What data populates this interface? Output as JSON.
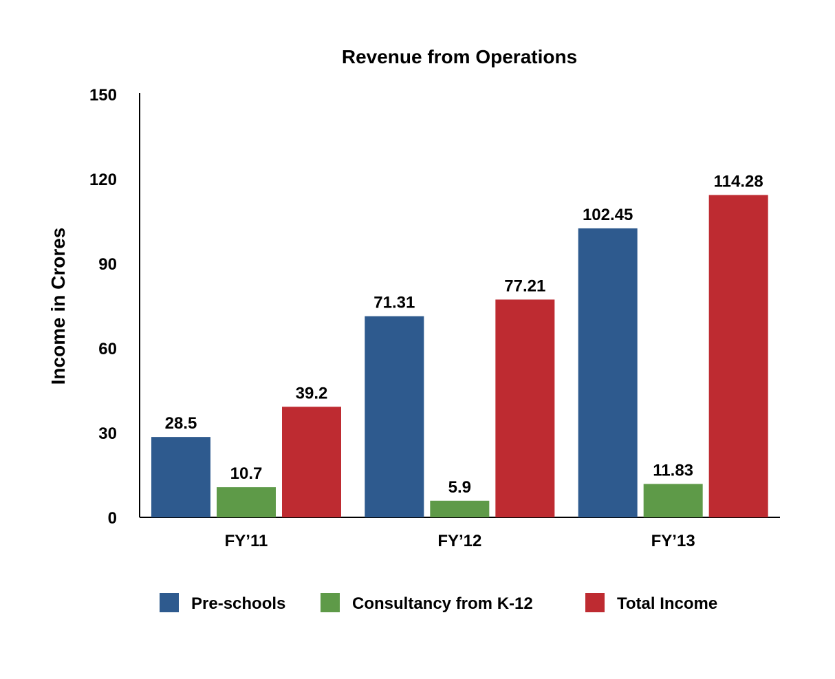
{
  "chart_data": {
    "type": "bar",
    "title": "Revenue from Operations",
    "xlabel": "",
    "ylabel": "Income in Crores",
    "ylim": [
      0,
      150
    ],
    "yticks": [
      0,
      30,
      60,
      90,
      120,
      150
    ],
    "categories": [
      "FY’11",
      "FY’12",
      "FY’13"
    ],
    "series": [
      {
        "name": "Pre-schools",
        "color": "#2E5A8E",
        "values": [
          28.5,
          71.31,
          102.45
        ],
        "labels": [
          "28.5",
          "71.31",
          "102.45"
        ]
      },
      {
        "name": "Consultancy from K-12",
        "color": "#5E9A48",
        "values": [
          10.7,
          5.9,
          11.83
        ],
        "labels": [
          "10.7",
          "5.9",
          "11.83"
        ]
      },
      {
        "name": "Total Income",
        "color": "#BE2B31",
        "values": [
          39.2,
          77.21,
          114.28
        ],
        "labels": [
          "39.2",
          "77.21",
          "114.28"
        ]
      }
    ],
    "grid": false,
    "legend_position": "bottom"
  }
}
